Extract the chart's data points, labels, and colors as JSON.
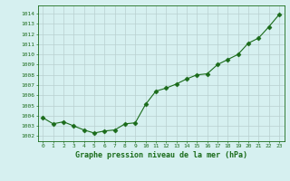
{
  "x": [
    0,
    1,
    2,
    3,
    4,
    5,
    6,
    7,
    8,
    9,
    10,
    11,
    12,
    13,
    14,
    15,
    16,
    17,
    18,
    19,
    20,
    21,
    22,
    23
  ],
  "y": [
    1003.8,
    1003.2,
    1003.4,
    1003.0,
    1002.6,
    1002.3,
    1002.5,
    1002.6,
    1003.2,
    1003.3,
    1005.1,
    1006.4,
    1006.7,
    1007.1,
    1007.6,
    1008.0,
    1008.1,
    1009.0,
    1009.5,
    1010.0,
    1011.1,
    1011.6,
    1012.7,
    1013.9
  ],
  "line_color": "#1a6b1a",
  "marker": "D",
  "marker_size": 2.5,
  "bg_color": "#d6f0f0",
  "grid_color": "#b8d0d0",
  "xlabel": "Graphe pression niveau de la mer (hPa)",
  "ylabel_ticks": [
    1002,
    1003,
    1004,
    1005,
    1006,
    1007,
    1008,
    1009,
    1010,
    1011,
    1012,
    1013,
    1014
  ],
  "xlim": [
    -0.5,
    23.5
  ],
  "ylim": [
    1001.5,
    1014.8
  ],
  "xtick_labels": [
    "0",
    "1",
    "2",
    "3",
    "4",
    "5",
    "6",
    "7",
    "8",
    "9",
    "10",
    "11",
    "12",
    "13",
    "14",
    "15",
    "16",
    "17",
    "18",
    "19",
    "20",
    "21",
    "22",
    "23"
  ]
}
